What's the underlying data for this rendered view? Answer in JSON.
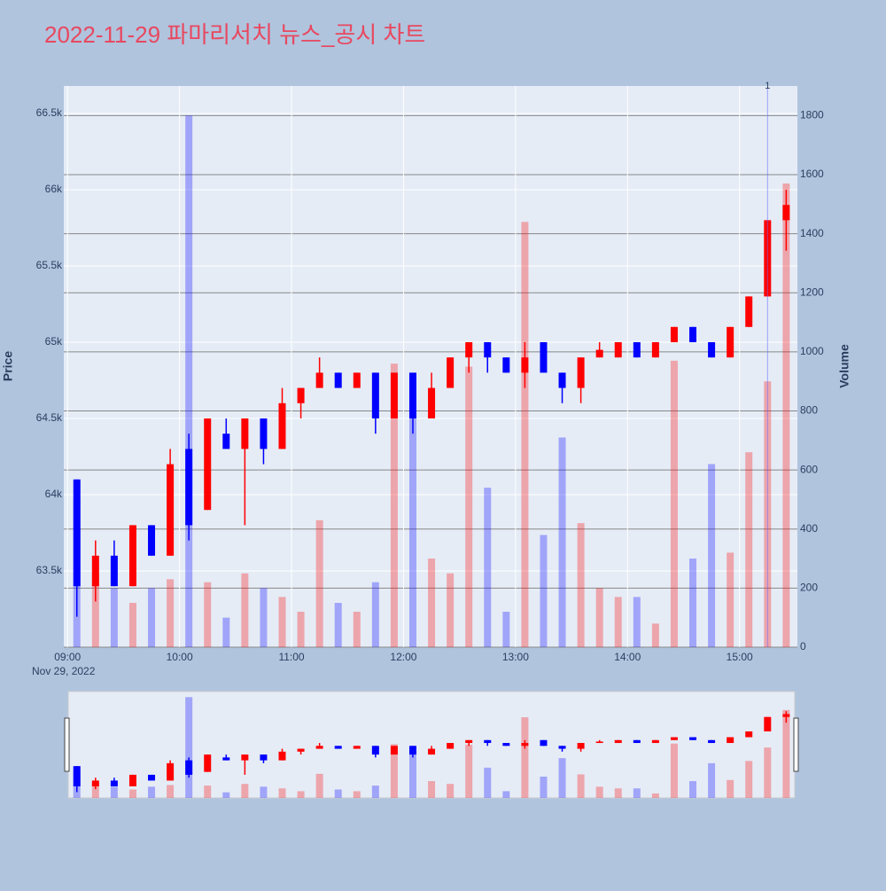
{
  "chart_data": {
    "type": "candlestick",
    "title": "2022-11-29 파마리서치 뉴스_공시 차트",
    "x_date_label": "Nov 29, 2022",
    "y_label": "Price",
    "y2_label": "Volume",
    "increasing_color": "#ff0000",
    "decreasing_color": "#0000ff",
    "x": [
      "09:00",
      "09:10",
      "09:20",
      "09:30",
      "09:40",
      "09:50",
      "10:00",
      "10:10",
      "10:20",
      "10:30",
      "10:40",
      "10:50",
      "11:00",
      "11:10",
      "11:20",
      "11:30",
      "11:40",
      "11:50",
      "12:00",
      "12:10",
      "12:20",
      "12:30",
      "12:40",
      "12:50",
      "13:00",
      "13:10",
      "13:20",
      "13:30",
      "13:40",
      "13:50",
      "14:00",
      "14:10",
      "14:20",
      "14:30",
      "14:40",
      "14:50",
      "15:00",
      "15:10",
      "15:20"
    ],
    "open": [
      64100,
      63400,
      63600,
      63400,
      63800,
      63600,
      64300,
      63900,
      64400,
      64300,
      64500,
      64300,
      64600,
      64700,
      64800,
      64700,
      64800,
      64500,
      64800,
      64500,
      64700,
      64900,
      65000,
      64900,
      64800,
      65000,
      64800,
      64700,
      64900,
      64900,
      65000,
      64900,
      65000,
      65100,
      65000,
      64900,
      65100,
      65300,
      65800
    ],
    "high": [
      64100,
      63700,
      63700,
      63800,
      63800,
      64300,
      64400,
      64500,
      64500,
      64500,
      64500,
      64700,
      64700,
      64900,
      64800,
      64800,
      64800,
      64800,
      64800,
      64800,
      64900,
      65000,
      65000,
      64900,
      65000,
      65000,
      64800,
      64900,
      65000,
      65000,
      65000,
      65000,
      65100,
      65100,
      65000,
      65100,
      65300,
      65800,
      66000
    ],
    "low": [
      63200,
      63300,
      63400,
      63400,
      63600,
      63600,
      63700,
      63900,
      64300,
      63800,
      64200,
      64300,
      64500,
      64700,
      64700,
      64700,
      64400,
      64500,
      64400,
      64500,
      64700,
      64800,
      64800,
      64800,
      64700,
      64800,
      64600,
      64600,
      64900,
      64900,
      64900,
      64900,
      65000,
      65000,
      64900,
      64900,
      65100,
      65300,
      65600
    ],
    "close": [
      63400,
      63600,
      63400,
      63800,
      63600,
      64200,
      63800,
      64500,
      64300,
      64500,
      64300,
      64600,
      64700,
      64800,
      64700,
      64800,
      64500,
      64800,
      64500,
      64700,
      64900,
      65000,
      64900,
      64800,
      64900,
      64800,
      64700,
      64900,
      64950,
      65000,
      64900,
      65000,
      65100,
      65000,
      64900,
      65100,
      65300,
      65800,
      65900
    ],
    "volume": [
      500,
      250,
      200,
      150,
      200,
      230,
      1800,
      220,
      100,
      250,
      200,
      170,
      120,
      430,
      150,
      120,
      220,
      960,
      800,
      300,
      250,
      950,
      540,
      120,
      1440,
      380,
      710,
      420,
      200,
      170,
      170,
      80,
      970,
      300,
      620,
      320,
      660,
      900,
      1570
    ],
    "xlim": [
      "08:58",
      "15:31"
    ],
    "xticks": [
      "09:00",
      "10:00",
      "11:00",
      "12:00",
      "13:00",
      "14:00",
      "15:00"
    ],
    "ylim": [
      63000,
      66680
    ],
    "yticks": [
      {
        "value": 63500,
        "label": "63.5k"
      },
      {
        "value": 64000,
        "label": "64k"
      },
      {
        "value": 64500,
        "label": "64.5k"
      },
      {
        "value": 65000,
        "label": "65k"
      },
      {
        "value": 65500,
        "label": "65.5k"
      },
      {
        "value": 66000,
        "label": "66k"
      },
      {
        "value": 66500,
        "label": "66.5k"
      }
    ],
    "y2lim": [
      0,
      1900
    ],
    "y2ticks": [
      0,
      200,
      400,
      600,
      800,
      1000,
      1200,
      1400,
      1600,
      1800
    ],
    "annotations": [
      {
        "x": "15:15",
        "text": "1"
      }
    ],
    "grid": true
  }
}
